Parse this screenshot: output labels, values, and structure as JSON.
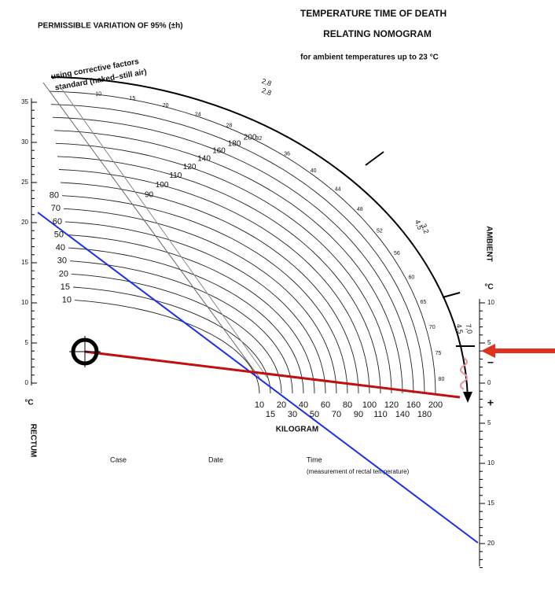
{
  "header": {
    "variation": "PERMISSIBLE VARIATION OF 95% (±h)",
    "title_line1": "TEMPERATURE TIME OF DEATH",
    "title_line2": "RELATING NOMOGRAM",
    "subtitle": "for ambient temperatures up to 23 °C"
  },
  "arc_labels": {
    "corrective": "using corrective factors",
    "standard": "standard (naked–still air)"
  },
  "rectum_scale": {
    "unit": "°C",
    "label": "RECTUM",
    "ticks": [
      "0",
      "5",
      "10",
      "15",
      "20",
      "25",
      "30",
      "35"
    ]
  },
  "ambient_scale": {
    "label": "AMBIENT",
    "unit": "°C",
    "ticks": [
      "10",
      "5",
      "0",
      "5",
      "10",
      "15",
      "20"
    ],
    "minus": "−",
    "plus": "+"
  },
  "kilogram": {
    "label": "KILOGRAM",
    "weights": [
      "10",
      "15",
      "20",
      "30",
      "40",
      "50",
      "60",
      "70",
      "80",
      "90",
      "100",
      "110",
      "120",
      "140",
      "160",
      "180",
      "200"
    ]
  },
  "outer_arc": {
    "labels": [
      "2,8",
      "2,8",
      "3,2",
      "4,5",
      "7,0",
      "4,5"
    ]
  },
  "hours_outer": [
    "10",
    "15",
    "20",
    "24",
    "28",
    "32",
    "36",
    "40",
    "44",
    "48",
    "52",
    "56",
    "60",
    "65",
    "70",
    "75",
    "80"
  ],
  "footer": {
    "case": "Case",
    "date": "Date",
    "time": "Time",
    "time_note": "(measurement of rectal temperature)"
  }
}
